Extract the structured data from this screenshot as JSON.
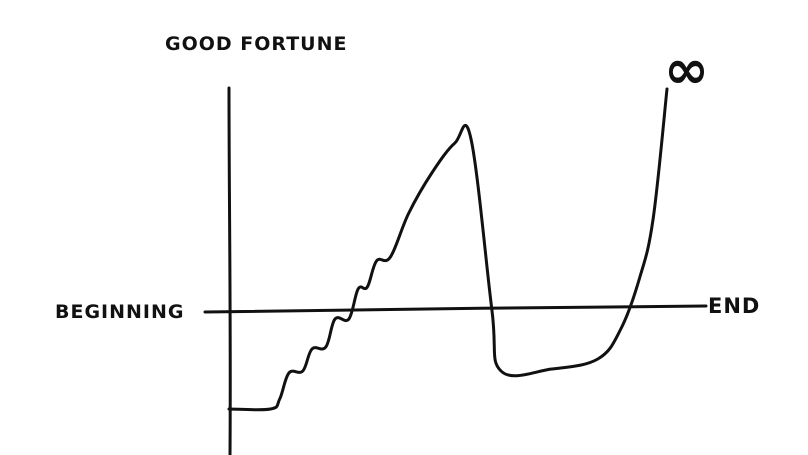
{
  "chart_data": {
    "type": "line",
    "ylabel": "GOOD FORTUNE",
    "x_start_label": "BEGINNING",
    "x_end_label": "END",
    "annotation": "∞",
    "grid": false,
    "legend": "none",
    "series": [
      {
        "points": [
          [
            0.0,
            -0.5
          ],
          [
            0.09,
            -0.5
          ],
          [
            0.11,
            -0.45
          ],
          [
            0.13,
            -0.32
          ],
          [
            0.16,
            -0.31
          ],
          [
            0.18,
            -0.2
          ],
          [
            0.21,
            -0.19
          ],
          [
            0.23,
            -0.05
          ],
          [
            0.26,
            -0.05
          ],
          [
            0.28,
            0.1
          ],
          [
            0.3,
            0.11
          ],
          [
            0.32,
            0.24
          ],
          [
            0.35,
            0.26
          ],
          [
            0.39,
            0.48
          ],
          [
            0.44,
            0.68
          ],
          [
            0.49,
            0.83
          ],
          [
            0.525,
            0.85
          ],
          [
            0.57,
            0.0
          ],
          [
            0.59,
            -0.31
          ],
          [
            0.7,
            -0.3
          ],
          [
            0.8,
            -0.25
          ],
          [
            0.85,
            -0.1
          ],
          [
            0.89,
            0.15
          ],
          [
            0.92,
            0.45
          ],
          [
            0.95,
            1.1
          ]
        ]
      }
    ],
    "xlim": [
      0,
      1
    ],
    "ylim": [
      -0.8,
      1.15
    ]
  },
  "colors": {
    "ink": "#111111",
    "background": "#ffffff"
  }
}
